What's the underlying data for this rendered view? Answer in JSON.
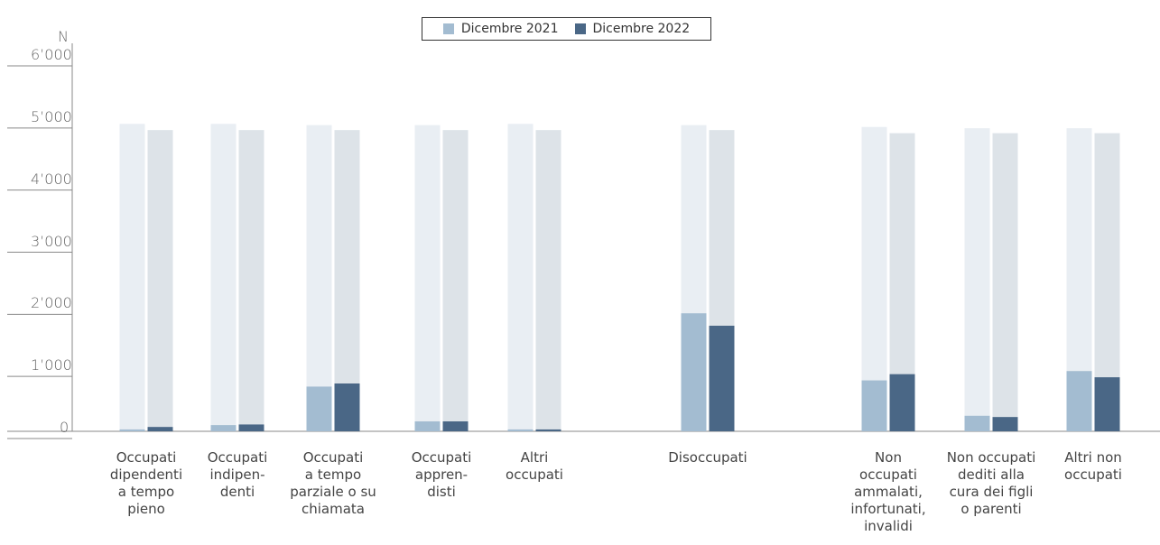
{
  "chart_data": {
    "type": "bar",
    "ylabel": "N",
    "ylim": [
      0,
      6000
    ],
    "yticks": [
      "0",
      "1’000",
      "2’000",
      "3’000",
      "4’000",
      "5’000",
      "6’000"
    ],
    "ytick_values": [
      0,
      1000,
      2000,
      3000,
      4000,
      5000,
      6000
    ],
    "categories": [
      "Occupati\ndipendenti\na tempo\npieno",
      "Occupati\nindipen-\ndenti",
      "Occupati\na tempo\nparziale o su\nchiamata",
      "Occupati\nappren-\ndisti",
      "Altri\noccupati",
      "Disoccupati",
      "Non\noccupati\nammalati,\ninfortunati,\ninvalidi",
      "Non occupati\ndediti alla\ncura dei figli\no parenti",
      "Altri non\noccupati"
    ],
    "series": [
      {
        "name": "Dicembre 2021",
        "color": "#a3bcd1",
        "background_color": "#e9eef3",
        "values": [
          30,
          100,
          720,
          160,
          30,
          1900,
          820,
          250,
          970
        ],
        "totals": [
          4950,
          4950,
          4930,
          4930,
          4950,
          4930,
          4900,
          4880,
          4880
        ]
      },
      {
        "name": "Dicembre 2022",
        "color": "#4a6786",
        "background_color": "#dde3e8",
        "values": [
          70,
          110,
          770,
          160,
          30,
          1700,
          920,
          230,
          870
        ],
        "totals": [
          4850,
          4850,
          4850,
          4850,
          4850,
          4850,
          4800,
          4800,
          4800
        ]
      }
    ],
    "legend_position": "top-center",
    "grid": false
  }
}
